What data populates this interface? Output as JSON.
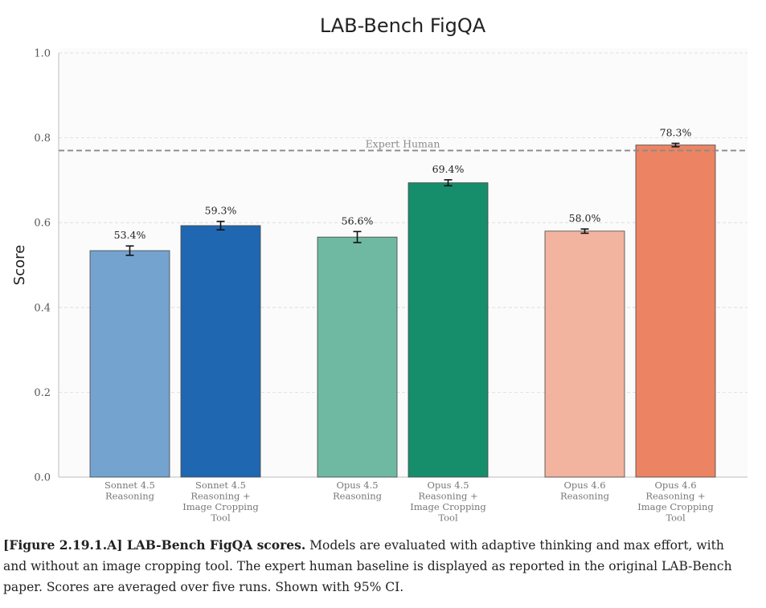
{
  "chart_data": {
    "type": "bar",
    "title": "LAB-Bench FigQA",
    "ylabel": "Score",
    "xlabel": "",
    "ylim": [
      0.0,
      1.0
    ],
    "yticks": [
      "0.0",
      "0.2",
      "0.4",
      "0.6",
      "0.8",
      "1.0"
    ],
    "grid": true,
    "error_bars": "95% CI",
    "reference_line": {
      "label": "Expert Human",
      "value": 0.77
    },
    "bars": [
      {
        "group": 0,
        "label_lines": [
          "Sonnet 4.5",
          "Reasoning"
        ],
        "value": 0.534,
        "value_label": "53.4%",
        "ci": 0.011,
        "color": "#74a3d0"
      },
      {
        "group": 0,
        "label_lines": [
          "Sonnet 4.5",
          "Reasoning +",
          "Image Cropping",
          "Tool"
        ],
        "value": 0.593,
        "value_label": "59.3%",
        "ci": 0.01,
        "color": "#1f67b1"
      },
      {
        "group": 1,
        "label_lines": [
          "Opus 4.5",
          "Reasoning"
        ],
        "value": 0.566,
        "value_label": "56.6%",
        "ci": 0.013,
        "color": "#6fb9a3"
      },
      {
        "group": 1,
        "label_lines": [
          "Opus 4.5",
          "Reasoning +",
          "Image Cropping",
          "Tool"
        ],
        "value": 0.694,
        "value_label": "69.4%",
        "ci": 0.007,
        "color": "#168e6b"
      },
      {
        "group": 2,
        "label_lines": [
          "Opus 4.6",
          "Reasoning"
        ],
        "value": 0.58,
        "value_label": "58.0%",
        "ci": 0.005,
        "color": "#f2b39f"
      },
      {
        "group": 2,
        "label_lines": [
          "Opus 4.6",
          "Reasoning +",
          "Image Cropping",
          "Tool"
        ],
        "value": 0.783,
        "value_label": "78.3%",
        "ci": 0.004,
        "color": "#ec8463"
      }
    ]
  },
  "caption": {
    "bold": "[Figure 2.19.1.A] LAB-Bench FigQA scores.",
    "text": " Models are evaluated with adaptive thinking and max effort, with and without an image cropping tool. The expert human baseline is displayed as reported in the original LAB-Bench paper. Scores are averaged over five runs. Shown with 95% CI."
  }
}
